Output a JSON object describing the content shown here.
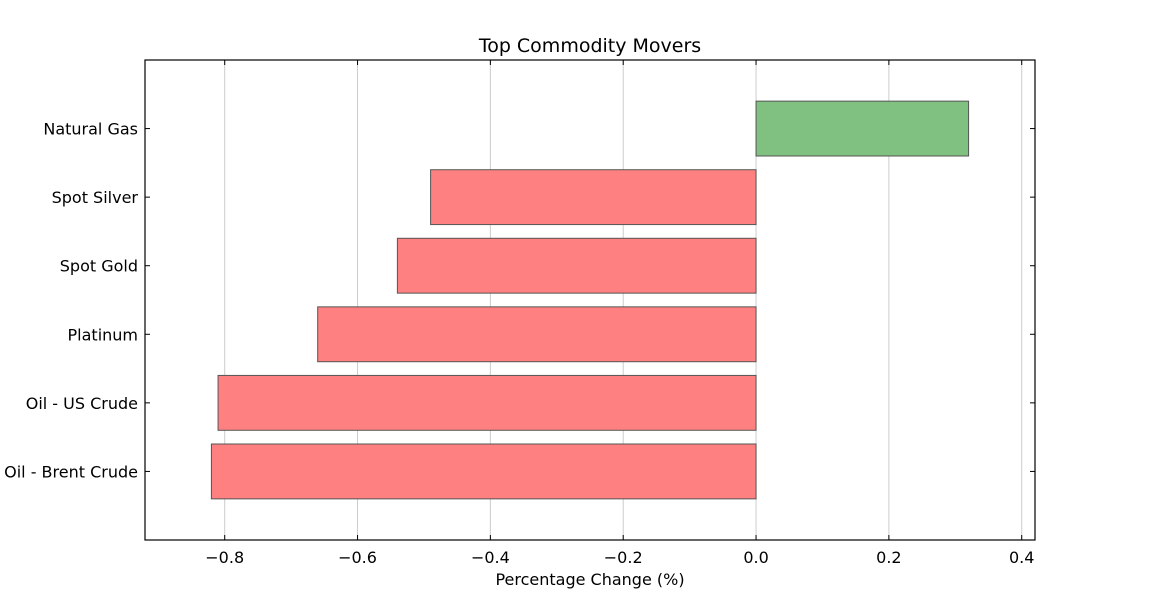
{
  "chart_data": {
    "type": "bar",
    "orientation": "horizontal",
    "title": "Top Commodity Movers",
    "xlabel": "Percentage Change (%)",
    "ylabel": "",
    "categories": [
      "Natural Gas",
      "Spot Silver",
      "Spot Gold",
      "Platinum",
      "Oil - US Crude",
      "Oil - Brent Crude"
    ],
    "values": [
      0.32,
      -0.49,
      -0.54,
      -0.66,
      -0.81,
      -0.82
    ],
    "xlim": [
      -0.92,
      0.42
    ],
    "xticks": [
      -0.8,
      -0.6,
      -0.4,
      -0.2,
      0.0,
      0.2,
      0.4
    ],
    "xtick_labels": [
      "−0.8",
      "−0.6",
      "−0.4",
      "−0.2",
      "0.0",
      "0.2",
      "0.4"
    ],
    "grid": "vertical",
    "colors": {
      "positive": "#80c080",
      "negative": "#ff8080",
      "bar_edge": "#555555",
      "grid": "#cccccc"
    }
  }
}
